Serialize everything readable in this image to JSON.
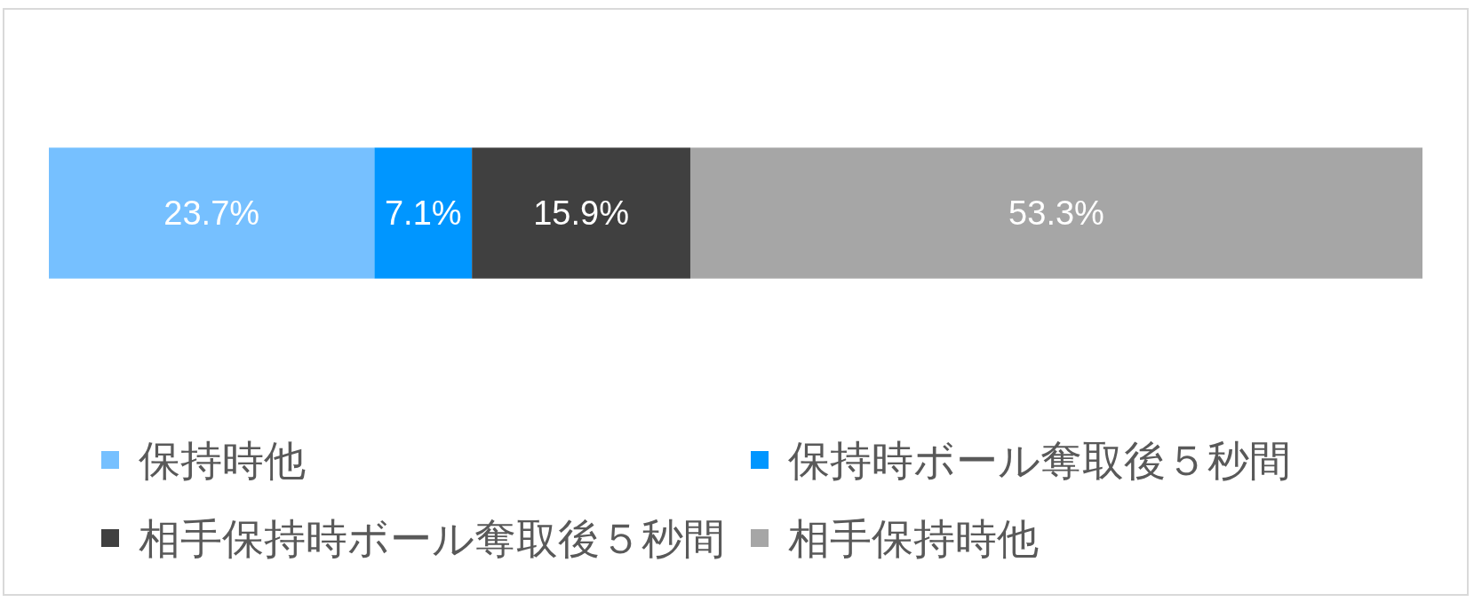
{
  "chart_data": {
    "type": "bar",
    "orientation": "horizontal",
    "stacked": true,
    "categories": [
      null
    ],
    "xlim": [
      0,
      100
    ],
    "legend": "bottom",
    "series": [
      {
        "name": "保持時他",
        "color": "#76c0ff",
        "values": [
          23.7
        ],
        "value_labels": [
          "23.7%"
        ]
      },
      {
        "name": "保持時ボール奪取後５秒間",
        "color": "#0096ff",
        "values": [
          7.1
        ],
        "value_labels": [
          "7.1%"
        ]
      },
      {
        "name": "相手保持時ボール奪取後５秒間",
        "color": "#404040",
        "values": [
          15.9
        ],
        "value_labels": [
          "15.9%"
        ]
      },
      {
        "name": "相手保持時他",
        "color": "#a6a6a6",
        "values": [
          53.3
        ],
        "value_labels": [
          "53.3%"
        ]
      }
    ]
  }
}
